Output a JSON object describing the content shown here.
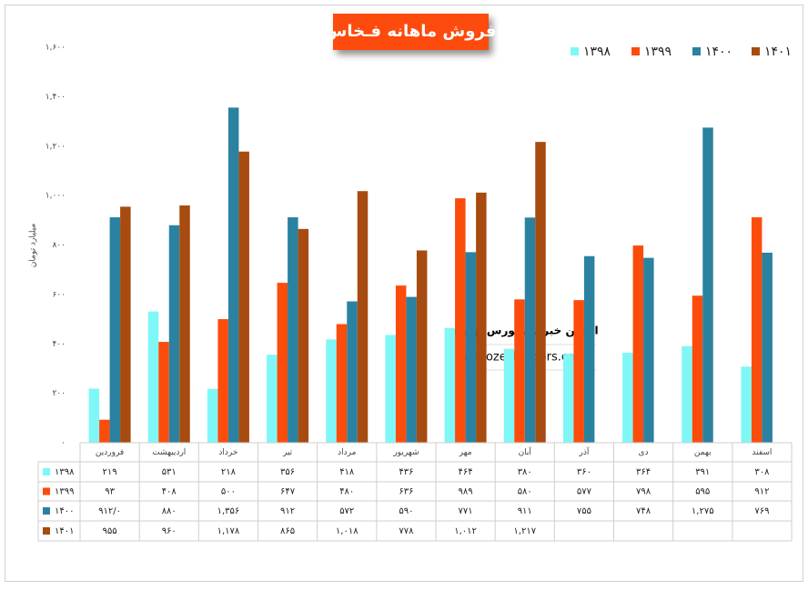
{
  "chart_data": {
    "type": "bar",
    "title": "فروش ماهانه فـخاس",
    "y_label": "میلیارد تومان",
    "watermark": [
      "انجمن خبرگان بورس تهـران",
      "amoozesh-boors.com"
    ],
    "categories": [
      "فروردین",
      "اردیبهشت",
      "خرداد",
      "تیر",
      "مرداد",
      "شهریور",
      "مهر",
      "آبان",
      "آذر",
      "دی",
      "بهمن",
      "اسفند"
    ],
    "ylim": [
      0,
      1600
    ],
    "yticks": [
      {
        "value": 0,
        "label": "۰"
      },
      {
        "value": 200,
        "label": "۲۰۰"
      },
      {
        "value": 400,
        "label": "۴۰۰"
      },
      {
        "value": 600,
        "label": "۶۰۰"
      },
      {
        "value": 800,
        "label": "۸۰۰"
      },
      {
        "value": 1000,
        "label": "۱,۰۰۰"
      },
      {
        "value": 1200,
        "label": "۱,۲۰۰"
      },
      {
        "value": 1400,
        "label": "۱,۴۰۰"
      },
      {
        "value": 1600,
        "label": "۱,۶۰۰"
      }
    ],
    "legend_position": "top-right",
    "series": [
      {
        "name": "۱۳۹۸",
        "color": "#7ff7f7",
        "values": [
          219,
          531,
          218,
          356,
          418,
          436,
          464,
          380,
          360,
          364,
          391,
          308
        ],
        "value_labels": [
          "۲۱۹",
          "۵۳۱",
          "۲۱۸",
          "۳۵۶",
          "۴۱۸",
          "۴۳۶",
          "۴۶۴",
          "۳۸۰",
          "۳۶۰",
          "۳۶۴",
          "۳۹۱",
          "۳۰۸"
        ]
      },
      {
        "name": "۱۳۹۹",
        "color": "#fc4c0c",
        "values": [
          93,
          408,
          500,
          647,
          480,
          636,
          989,
          580,
          577,
          798,
          595,
          912
        ],
        "value_labels": [
          "۹۳",
          "۴۰۸",
          "۵۰۰",
          "۶۴۷",
          "۴۸۰",
          "۶۳۶",
          "۹۸۹",
          "۵۸۰",
          "۵۷۷",
          "۷۹۸",
          "۵۹۵",
          "۹۱۲"
        ]
      },
      {
        "name": "۱۴۰۰",
        "color": "#2a82a0",
        "values": [
          912,
          880,
          1356,
          912,
          572,
          590,
          771,
          911,
          755,
          748,
          1275,
          769
        ],
        "value_labels": [
          "۹۱۲/۰",
          "۸۸۰",
          "۱,۳۵۶",
          "۹۱۲",
          "۵۷۲",
          "۵۹۰",
          "۷۷۱",
          "۹۱۱",
          "۷۵۵",
          "۷۴۸",
          "۱,۲۷۵",
          "۷۶۹"
        ]
      },
      {
        "name": "۱۴۰۱",
        "color": "#a84b10",
        "values": [
          955,
          960,
          1178,
          865,
          1018,
          778,
          1012,
          1217,
          null,
          null,
          null,
          null
        ],
        "value_labels": [
          "۹۵۵",
          "۹۶۰",
          "۱,۱۷۸",
          "۸۶۵",
          "۱,۰۱۸",
          "۷۷۸",
          "۱,۰۱۲",
          "۱,۲۱۷",
          null,
          null,
          null,
          null
        ]
      }
    ]
  }
}
